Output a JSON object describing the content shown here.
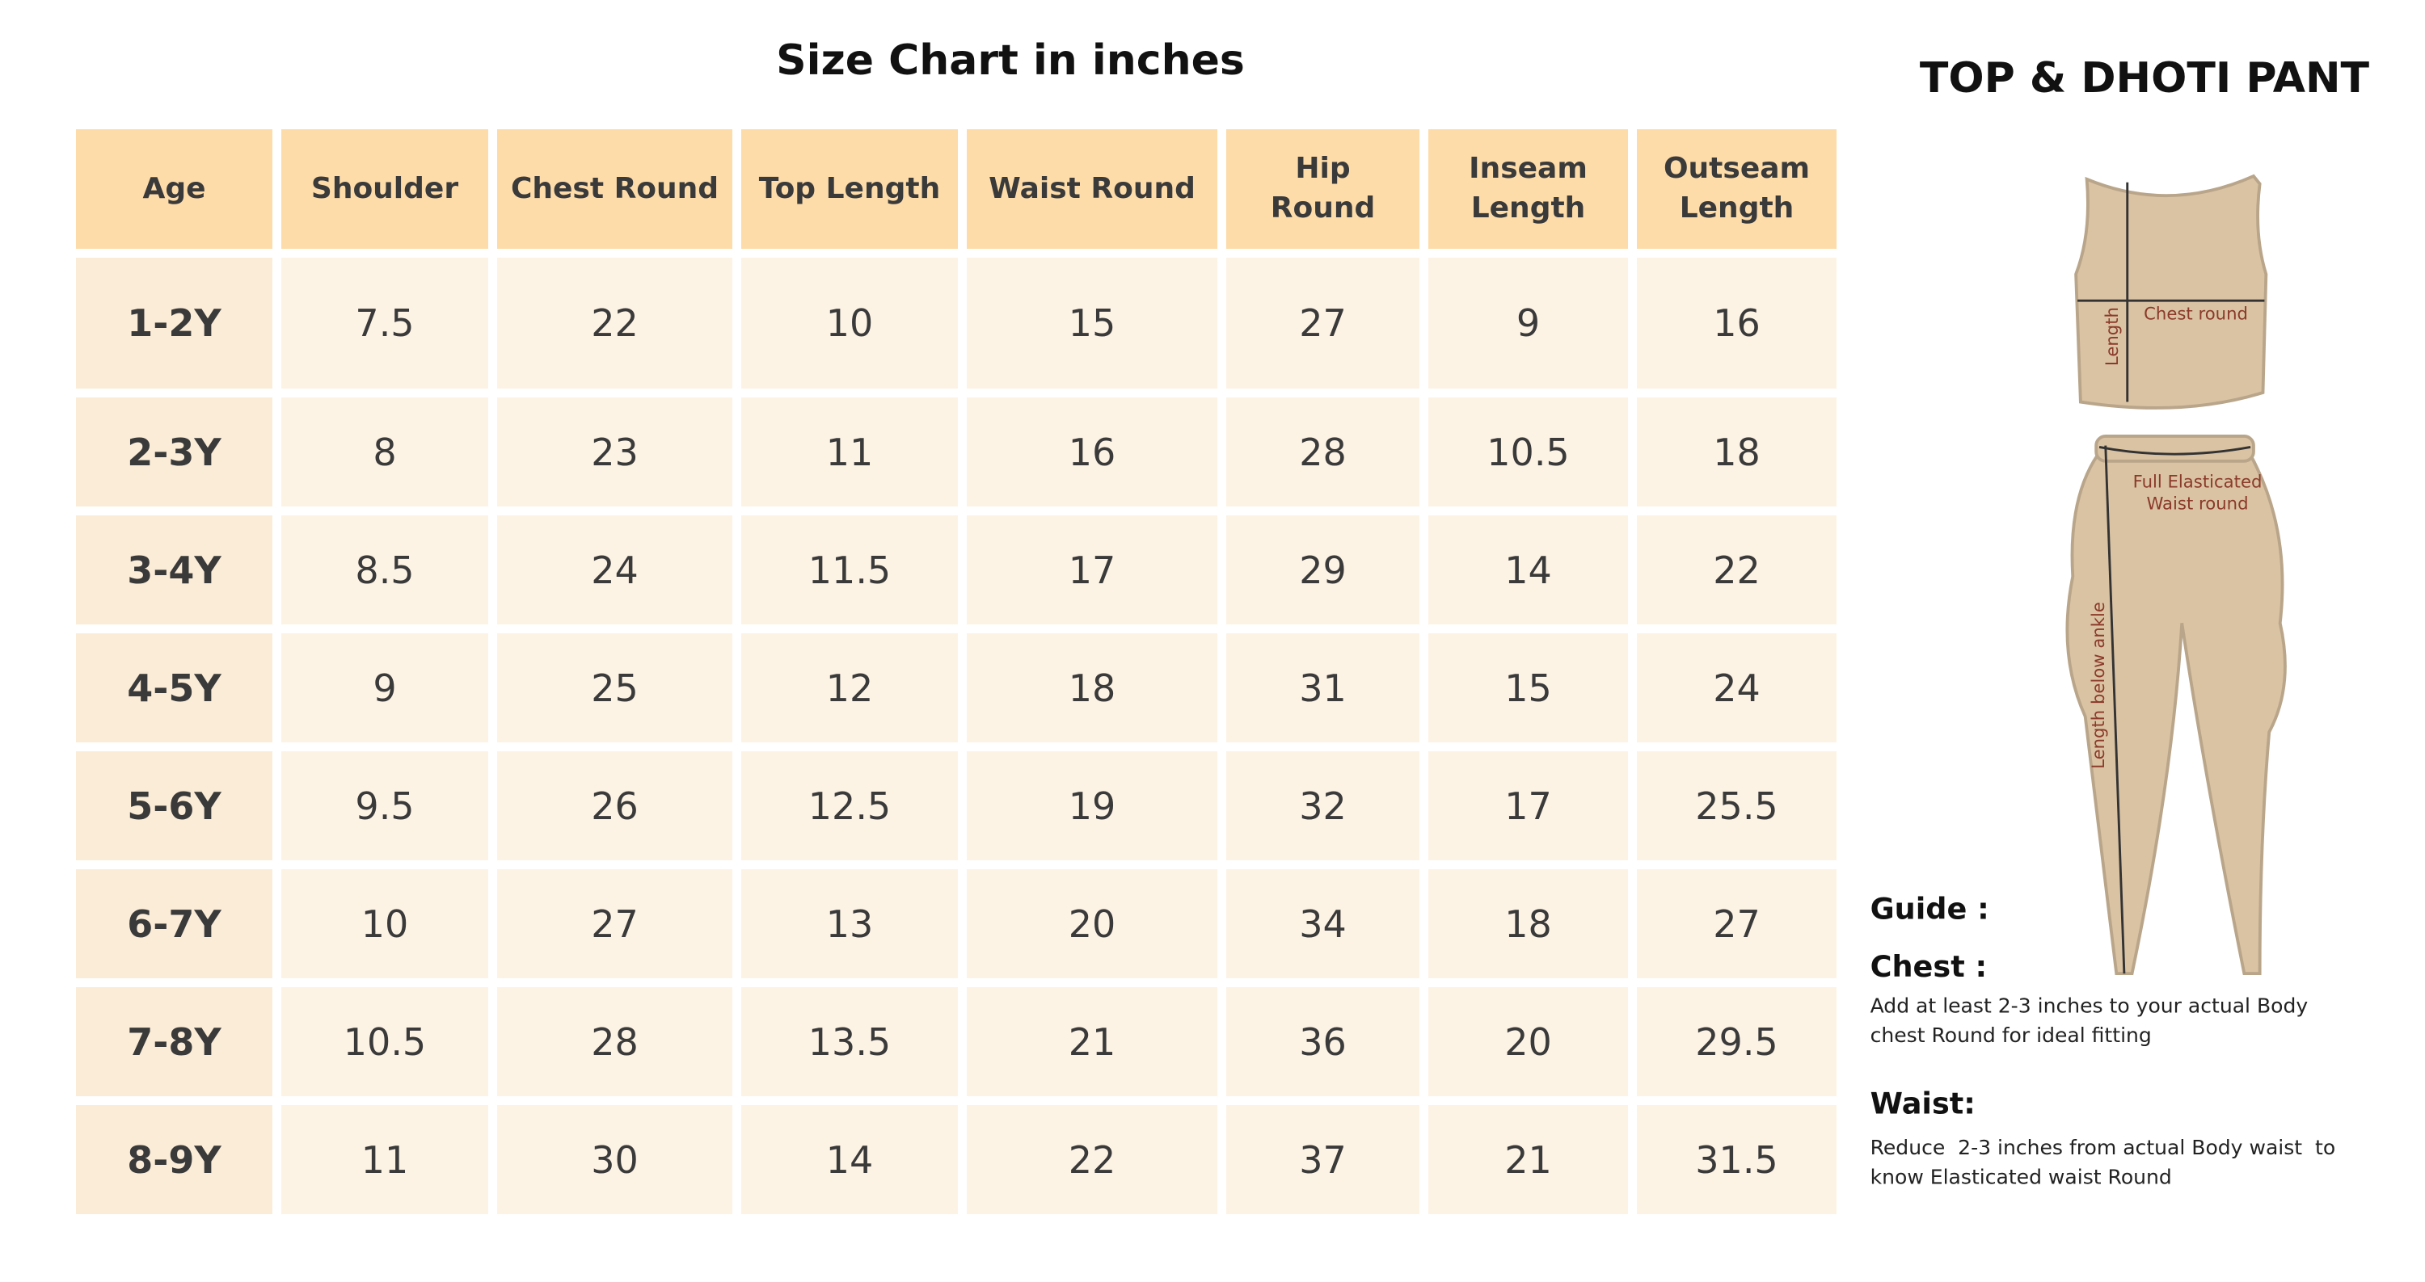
{
  "title": "Size Chart in inches",
  "table": {
    "header": [
      "Age",
      "Shoulder",
      "Chest Round",
      "Top Length",
      "Waist Round",
      "Hip Round",
      "Inseam Length",
      "Outseam Length"
    ],
    "rows": [
      [
        "1-2Y",
        "7.5",
        "22",
        "10",
        "15",
        "27",
        "9",
        "16"
      ],
      [
        "2-3Y",
        "8",
        "23",
        "11",
        "16",
        "28",
        "10.5",
        "18"
      ],
      [
        "3-4Y",
        "8.5",
        "24",
        "11.5",
        "17",
        "29",
        "14",
        "22"
      ],
      [
        "4-5Y",
        "9",
        "25",
        "12",
        "18",
        "31",
        "15",
        "24"
      ],
      [
        "5-6Y",
        "9.5",
        "26",
        "12.5",
        "19",
        "32",
        "17",
        "25.5"
      ],
      [
        "6-7Y",
        "10",
        "27",
        "13",
        "20",
        "34",
        "18",
        "27"
      ],
      [
        "7-8Y",
        "10.5",
        "28",
        "13.5",
        "21",
        "36",
        "20",
        "29.5"
      ],
      [
        "8-9Y",
        "11",
        "30",
        "14",
        "22",
        "37",
        "21",
        "31.5"
      ]
    ]
  },
  "side": {
    "title": "TOP & DHOTI PANT",
    "labels": {
      "chest_round": "Chest round",
      "length": "Length",
      "waist": [
        "Full Elasticated",
        "Waist round"
      ],
      "length_below_ankle": "Length below ankle"
    },
    "guide": {
      "title": "Guide :",
      "chest": {
        "title": "Chest :",
        "text": [
          "Add at least 2-3 inches to your actual Body",
          "chest Round for ideal fitting"
        ]
      },
      "waist": {
        "title": "Waist:",
        "text": [
          "Reduce  2-3 inches from actual Body waist  to",
          "know Elasticated waist Round"
        ]
      }
    }
  }
}
